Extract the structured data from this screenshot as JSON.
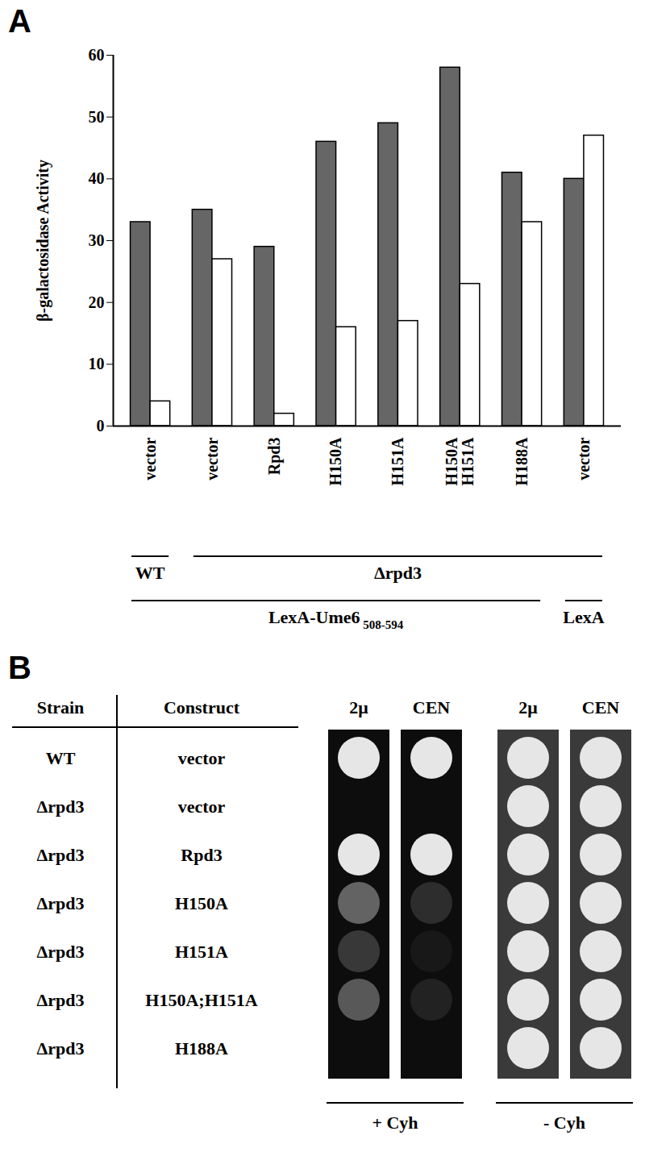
{
  "chart_data": {
    "type": "bar",
    "panel_label": "A",
    "y_label": "β-galactosidase Activity",
    "categories": [
      "vector",
      "vector",
      "Rpd3",
      "H150A",
      "H151A",
      "H150A\nH151A",
      "H188A",
      "vector"
    ],
    "series": [
      {
        "color": "#666666",
        "values": [
          33,
          35,
          29,
          46,
          49,
          58,
          41,
          40
        ]
      },
      {
        "color": "#ffffff",
        "values": [
          4,
          27,
          2,
          16,
          17,
          23,
          33,
          47
        ]
      }
    ],
    "ylim": [
      0,
      60
    ],
    "yticks": [
      0,
      10,
      20,
      30,
      40,
      50,
      60
    ],
    "grid": false,
    "group_rows": [
      [
        {
          "label": "WT",
          "categories": [
            0,
            0
          ]
        },
        {
          "label": "Δrpd3",
          "categories": [
            1,
            7
          ]
        }
      ],
      [
        {
          "label": "LexA-Ume6",
          "subscript": "508-594",
          "categories": [
            0,
            6
          ]
        },
        {
          "label": "LexA",
          "categories": [
            7,
            7
          ]
        }
      ]
    ]
  },
  "panel_b": {
    "panel_label": "B",
    "headers": [
      "Strain",
      "Construct"
    ],
    "columns": [
      "2μ",
      "CEN",
      "2μ",
      "CEN"
    ],
    "conditions": [
      {
        "label": "+ Cyh",
        "columns": [
          0,
          1
        ]
      },
      {
        "label": "- Cyh",
        "columns": [
          2,
          3
        ]
      }
    ],
    "rows": [
      {
        "strain": "WT",
        "construct": "vector",
        "growth": [
          1,
          1,
          1,
          1
        ]
      },
      {
        "strain": "Δrpd3",
        "construct": "vector",
        "growth": [
          0,
          0,
          1,
          1
        ]
      },
      {
        "strain": "Δrpd3",
        "construct": "Rpd3",
        "growth": [
          1,
          1,
          1,
          1
        ]
      },
      {
        "strain": "Δrpd3",
        "construct": "H150A",
        "growth": [
          0.4,
          0.15,
          1,
          1
        ]
      },
      {
        "strain": "Δrpd3",
        "construct": "H151A",
        "growth": [
          0.2,
          0.05,
          1,
          1
        ]
      },
      {
        "strain": "Δrpd3",
        "construct": "H150A;H151A",
        "growth": [
          0.35,
          0.1,
          1,
          1
        ]
      },
      {
        "strain": "Δrpd3",
        "construct": "H188A",
        "growth": [
          0,
          0,
          1,
          1
        ]
      }
    ]
  }
}
